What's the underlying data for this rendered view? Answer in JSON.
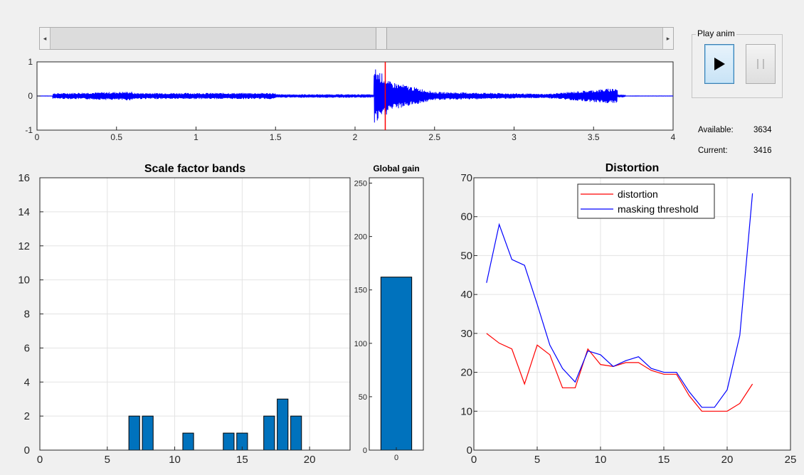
{
  "scrollbar": {
    "left_arrow": "◂",
    "right_arrow": "▸",
    "position": 0.54
  },
  "play_panel": {
    "title": "Play anim",
    "play_icon": "play-icon",
    "pause_icon": "pause-icon"
  },
  "info": {
    "available_label": "Available:",
    "available_value": "3634",
    "current_label": "Current:",
    "current_value": "3416"
  },
  "chart_data": [
    {
      "name": "waveform",
      "type": "line",
      "title": "",
      "xlim": [
        0,
        4
      ],
      "ylim": [
        -1,
        1
      ],
      "x_ticks": [
        "0",
        "0.5",
        "1",
        "1.5",
        "2",
        "2.5",
        "3",
        "3.5",
        "4"
      ],
      "y_ticks": [
        "-1",
        "0",
        "1"
      ],
      "cursor_x": 2.19,
      "color": "#0000ff",
      "cursor_color": "#ff0000"
    },
    {
      "name": "scale-factor-bands",
      "type": "bar",
      "title": "Scale factor bands",
      "xlim": [
        0,
        23
      ],
      "ylim": [
        0,
        16
      ],
      "x_ticks": [
        "0",
        "5",
        "10",
        "15",
        "20"
      ],
      "y_ticks": [
        "0",
        "2",
        "4",
        "6",
        "8",
        "10",
        "12",
        "14",
        "16"
      ],
      "x": [
        7,
        8,
        11,
        14,
        15,
        17,
        18,
        19
      ],
      "values": [
        2,
        2,
        1,
        1,
        1,
        2,
        3,
        2
      ],
      "color": "#0072bd"
    },
    {
      "name": "global-gain",
      "type": "bar",
      "title": "Global gain",
      "ylim": [
        0,
        255
      ],
      "categories": [
        "0"
      ],
      "y_ticks": [
        "0",
        "50",
        "100",
        "150",
        "200",
        "250"
      ],
      "values": [
        162
      ],
      "color": "#0072bd"
    },
    {
      "name": "distortion",
      "type": "line",
      "title": "Distortion",
      "xlim": [
        0,
        25
      ],
      "ylim": [
        0,
        70
      ],
      "x_ticks": [
        "0",
        "5",
        "10",
        "15",
        "20",
        "25"
      ],
      "y_ticks": [
        "0",
        "10",
        "20",
        "30",
        "40",
        "50",
        "60",
        "70"
      ],
      "x": [
        1,
        2,
        3,
        4,
        5,
        6,
        7,
        8,
        9,
        10,
        11,
        12,
        13,
        14,
        15,
        16,
        17,
        18,
        19,
        20,
        21,
        22
      ],
      "series": [
        {
          "name": "distortion",
          "color": "#ff0000",
          "values": [
            30,
            27.5,
            26,
            17,
            27,
            24.5,
            16,
            16,
            26,
            22,
            21.5,
            22.5,
            22.5,
            20.5,
            19.5,
            19.5,
            14,
            10,
            10,
            10,
            12,
            17
          ]
        },
        {
          "name": "masking threshold",
          "color": "#0000ff",
          "values": [
            43,
            58,
            49,
            47.5,
            37.5,
            27,
            21,
            17.5,
            25.5,
            24.5,
            21.5,
            23,
            24,
            21,
            20,
            20,
            15,
            11,
            11,
            15.5,
            29.5,
            66
          ]
        }
      ],
      "legend": "top-right"
    }
  ]
}
